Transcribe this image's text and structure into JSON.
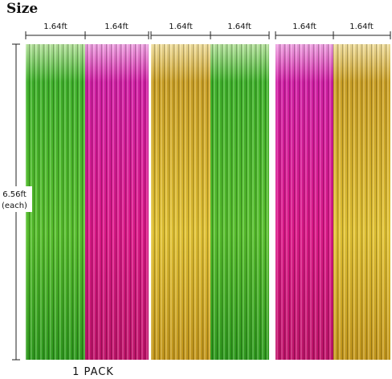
{
  "header": {
    "title": "Size"
  },
  "widths": [
    "1.64ft",
    "1.64ft",
    "1.64ft",
    "1.64ft",
    "1.64ft",
    "1.64ft"
  ],
  "height": {
    "value": "6.56ft",
    "note": "(each)"
  },
  "caption": "1 PACK"
}
